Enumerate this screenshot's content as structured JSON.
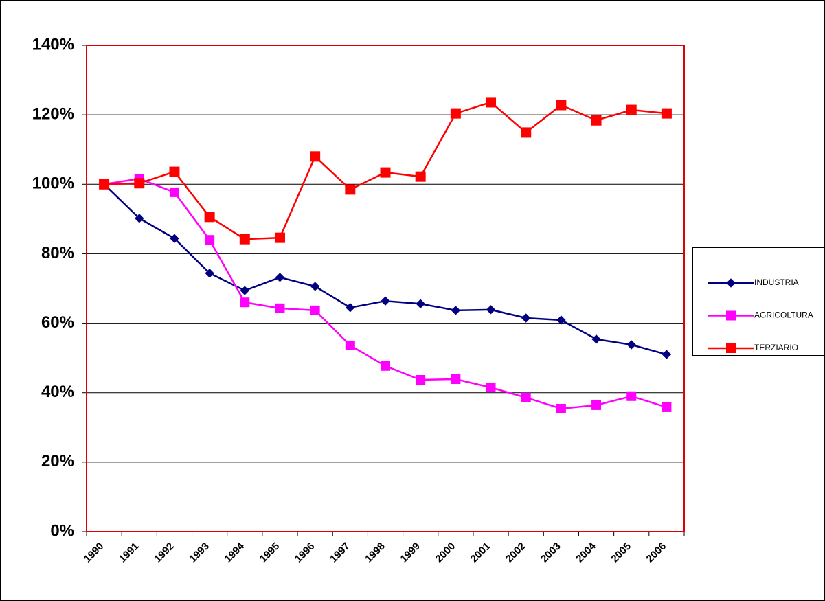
{
  "chart_data": {
    "type": "line",
    "categories": [
      "1990",
      "1991",
      "1992",
      "1993",
      "1994",
      "1995",
      "1996",
      "1997",
      "1998",
      "1999",
      "2000",
      "2001",
      "2002",
      "2003",
      "2004",
      "2005",
      "2006"
    ],
    "series": [
      {
        "name": "INDUSTRIA",
        "color": "#000080",
        "marker": "diamond",
        "values": [
          100,
          90.2,
          84.4,
          74.4,
          69.4,
          73.2,
          70.6,
          64.5,
          66.4,
          65.6,
          63.7,
          63.9,
          61.5,
          60.9,
          55.4,
          53.8,
          51
        ]
      },
      {
        "name": "AGRICOLTURA",
        "color": "#ff00ff",
        "marker": "square",
        "values": [
          100,
          101.6,
          97.7,
          84,
          66,
          64.3,
          63.7,
          53.6,
          47.7,
          43.7,
          43.9,
          41.5,
          38.6,
          35.4,
          36.4,
          39,
          35.8
        ]
      },
      {
        "name": "TERZIARIO",
        "color": "#ff0000",
        "marker": "square",
        "values": [
          100,
          100.3,
          103.6,
          90.6,
          84.2,
          84.6,
          108,
          98.5,
          103.4,
          102.2,
          120.4,
          123.6,
          114.9,
          122.8,
          118.4,
          121.4,
          120.4
        ]
      }
    ],
    "ylim": [
      0,
      140
    ],
    "yticks": [
      {
        "value": 0,
        "label": "0%"
      },
      {
        "value": 20,
        "label": "20%"
      },
      {
        "value": 40,
        "label": "40%"
      },
      {
        "value": 60,
        "label": "60%"
      },
      {
        "value": 80,
        "label": "80%"
      },
      {
        "value": 100,
        "label": "100%"
      },
      {
        "value": 120,
        "label": "120%"
      },
      {
        "value": 140,
        "label": "140%"
      }
    ],
    "grid": true,
    "legend": "right"
  }
}
